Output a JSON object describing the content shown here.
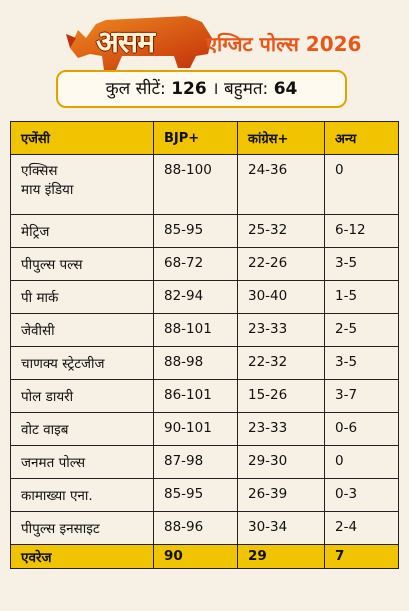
{
  "header": {
    "brand": "असम",
    "title": "एग्जिट पोल्स 2026"
  },
  "summary": {
    "seats_label": "कुल सीटें:",
    "seats_value": "126",
    "separator": "।",
    "majority_label": "बहुमत:",
    "majority_value": "64"
  },
  "table": {
    "columns": [
      "एजेंसी",
      "BJP+",
      "कांग्रेस+",
      "अन्य"
    ],
    "rows": [
      {
        "agency": "एक्सिस\nमाय इंडिया",
        "bjp": "88-100",
        "cong": "24-36",
        "other": "0"
      },
      {
        "agency": "मेट्रिज",
        "bjp": "85-95",
        "cong": "25-32",
        "other": "6-12"
      },
      {
        "agency": "पीपुल्स पल्स",
        "bjp": "68-72",
        "cong": "22-26",
        "other": "3-5"
      },
      {
        "agency": "पी मार्क",
        "bjp": "82-94",
        "cong": "30-40",
        "other": "1-5"
      },
      {
        "agency": "जेवीसी",
        "bjp": "88-101",
        "cong": "23-33",
        "other": "2-5"
      },
      {
        "agency": "चाणक्य स्ट्रेटजीज",
        "bjp": "88-98",
        "cong": "22-32",
        "other": "3-5"
      },
      {
        "agency": "पोल डायरी",
        "bjp": "86-101",
        "cong": "15-26",
        "other": "3-7"
      },
      {
        "agency": "वोट वाइब",
        "bjp": "90-101",
        "cong": "23-33",
        "other": "0-6"
      },
      {
        "agency": "जनमत पोल्स",
        "bjp": "87-98",
        "cong": "29-30",
        "other": "0"
      },
      {
        "agency": "कामाख्या एना.",
        "bjp": "85-95",
        "cong": "26-39",
        "other": "0-3"
      },
      {
        "agency": "पीपुल्स इनसाइट",
        "bjp": "88-96",
        "cong": "30-34",
        "other": "2-4"
      }
    ],
    "footer": {
      "agency": "एवरेज",
      "bjp": "90",
      "cong": "29",
      "other": "7"
    }
  },
  "colors": {
    "header_yellow": "#f0c400",
    "title_orange": "#e8571a",
    "border_gold": "#e0a400",
    "background": "#f6f1e4"
  },
  "icons": {
    "logo": "rhino-icon"
  }
}
